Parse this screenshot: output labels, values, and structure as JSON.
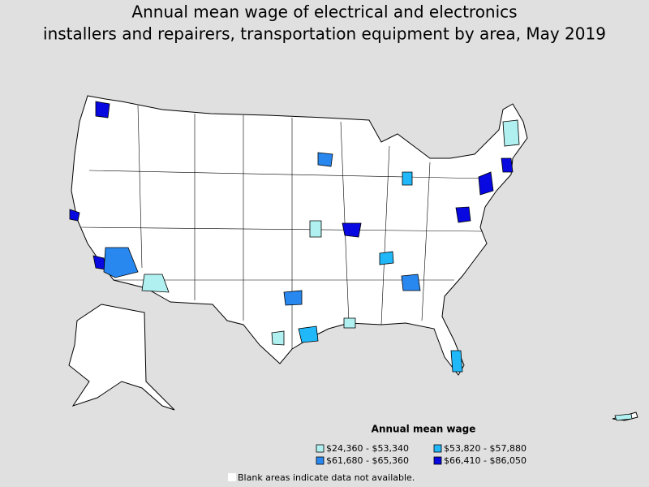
{
  "title": [
    "Annual mean wage of electrical and electronics",
    "installers and repairers, transportation equipment by area, May 2019"
  ],
  "legend": {
    "title": "Annual mean wage",
    "items": [
      {
        "label": "$24,360 - $53,340",
        "color": "#b0f0f0"
      },
      {
        "label": "$53,820 - $57,880",
        "color": "#20b8f8"
      },
      {
        "label": "$61,680 - $65,360",
        "color": "#2888f0"
      },
      {
        "label": "$66,410 - $86,050",
        "color": "#0808e0"
      }
    ]
  },
  "note": "Blank areas indicate data not available."
}
